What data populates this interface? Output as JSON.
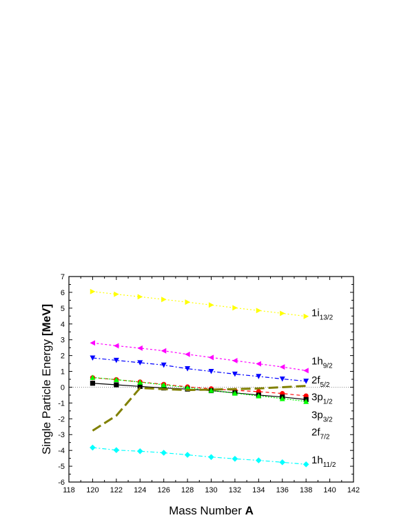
{
  "chart_data": {
    "type": "line",
    "xlabel_main": "Mass Number ",
    "xlabel_bold": "A",
    "ylabel_main": "Single Particle Energy ",
    "ylabel_bold": "[MeV]",
    "xlim": [
      118,
      142
    ],
    "ylim": [
      -6,
      7
    ],
    "x_ticks": [
      118,
      120,
      122,
      124,
      126,
      128,
      130,
      132,
      134,
      136,
      138,
      140,
      142
    ],
    "y_ticks": [
      -6,
      -5,
      -4,
      -3,
      -2,
      -1,
      0,
      1,
      2,
      3,
      4,
      5,
      6,
      7
    ],
    "x": [
      120,
      122,
      124,
      126,
      128,
      130,
      132,
      134,
      136,
      138
    ],
    "series": [
      {
        "values": [
          6.05,
          5.88,
          5.72,
          5.55,
          5.38,
          5.2,
          5.02,
          4.85,
          4.67,
          4.48
        ],
        "color": "#ffff00",
        "marker": "triangle-right",
        "dash": "2,3"
      },
      {
        "values": [
          2.8,
          2.62,
          2.47,
          2.3,
          2.08,
          1.88,
          1.68,
          1.48,
          1.28,
          1.05
        ],
        "color": "#ff00ff",
        "marker": "triangle-left",
        "dash": "3,3"
      },
      {
        "values": [
          1.85,
          1.7,
          1.55,
          1.4,
          1.17,
          1.0,
          0.83,
          0.68,
          0.52,
          0.38
        ],
        "color": "#0000ff",
        "marker": "triangle-down",
        "dash": "6,3,2,3"
      },
      {
        "values": [
          0.6,
          0.48,
          0.33,
          0.18,
          0.02,
          -0.1,
          -0.2,
          -0.28,
          -0.4,
          -0.55
        ],
        "color": "#ff0000",
        "marker": "circle",
        "dash": "5,4"
      },
      {
        "values": [
          0.25,
          0.15,
          0.05,
          -0.05,
          -0.12,
          -0.22,
          -0.36,
          -0.5,
          -0.62,
          -0.78
        ],
        "color": "#000000",
        "marker": "square",
        "dash": ""
      },
      {
        "values": [
          0.62,
          0.48,
          0.32,
          0.15,
          -0.03,
          -0.2,
          -0.38,
          -0.55,
          -0.72,
          -0.9
        ],
        "color": "#00ff00",
        "marker": "triangle-up",
        "dash": "2,2"
      },
      {
        "values": [
          -3.82,
          -3.98,
          -4.05,
          -4.15,
          -4.28,
          -4.42,
          -4.53,
          -4.63,
          -4.75,
          -4.88
        ],
        "color": "#00ffff",
        "marker": "diamond",
        "dash": "6,3,2,3"
      },
      {
        "values": [
          -2.75,
          -1.8,
          -0.05,
          -0.12,
          -0.18,
          -0.15,
          -0.12,
          -0.08,
          0.0,
          0.08
        ],
        "color": "#808000",
        "marker": "none",
        "dash": "14,6",
        "width": 3
      }
    ],
    "labels": [
      {
        "main": "1i",
        "sub": "13/2",
        "y": 4.4
      },
      {
        "main": "1h",
        "sub": "9/2",
        "y": 1.35
      },
      {
        "main": "2f",
        "sub": "5/2",
        "y": 0.15
      },
      {
        "main": "3p",
        "sub": "1/2",
        "y": -0.92
      },
      {
        "main": "3p",
        "sub": "3/2",
        "y": -2.05
      },
      {
        "main": "2f",
        "sub": "7/2",
        "y": -3.15
      },
      {
        "main": "1h",
        "sub": "11/2",
        "y": -4.9
      }
    ],
    "zero_reference_line": true,
    "grid": false,
    "legend": "none"
  }
}
